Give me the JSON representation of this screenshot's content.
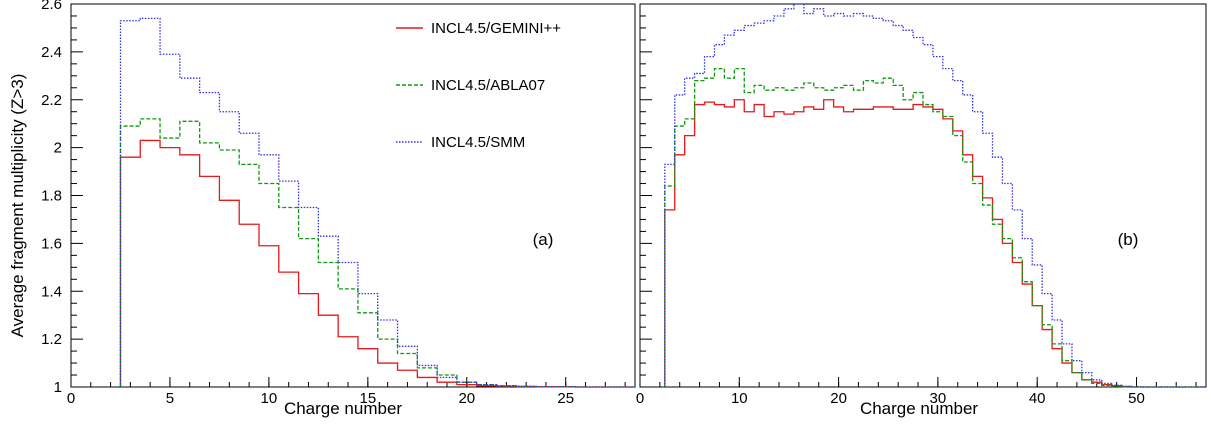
{
  "chart_data": [
    {
      "type": "line",
      "step": true,
      "panel_label": "(a)",
      "xlabel": "Charge number",
      "ylabel": "Average fragment multiplicity (Z>3)",
      "xlim": [
        0,
        28.5
      ],
      "ylim": [
        1,
        2.6
      ],
      "x_ticks": [
        0,
        5,
        10,
        15,
        20,
        25
      ],
      "y_ticks": [
        1,
        1.2,
        1.4,
        1.6,
        1.8,
        2,
        2.2,
        2.4,
        2.6
      ],
      "bin_width": 1,
      "x_start": 2.5,
      "legend_position": "top-center",
      "series": [
        {
          "name": "INCL4.5/GEMINI++",
          "color": "#e41a1c",
          "dash": "solid",
          "values": [
            1.96,
            2.03,
            2.0,
            1.97,
            1.88,
            1.78,
            1.68,
            1.59,
            1.48,
            1.39,
            1.3,
            1.21,
            1.16,
            1.1,
            1.07,
            1.04,
            1.02,
            1.01,
            1.005,
            1.003,
            1.002,
            1.001,
            1.001,
            1.0,
            1.0,
            1.0
          ]
        },
        {
          "name": "INCL4.5/ABLA07",
          "color": "#119911",
          "dash": "dashed",
          "values": [
            2.09,
            2.12,
            2.04,
            2.11,
            2.02,
            1.99,
            1.93,
            1.85,
            1.75,
            1.62,
            1.52,
            1.41,
            1.31,
            1.2,
            1.14,
            1.08,
            1.05,
            1.02,
            1.01,
            1.005,
            1.002,
            1.001,
            1.001,
            1.0,
            1.0,
            1.0
          ]
        },
        {
          "name": "INCL4.5/SMM",
          "color": "#3333dd",
          "dash": "dotted",
          "values": [
            2.53,
            2.54,
            2.39,
            2.29,
            2.23,
            2.15,
            2.06,
            1.97,
            1.86,
            1.75,
            1.63,
            1.52,
            1.39,
            1.28,
            1.17,
            1.09,
            1.04,
            1.02,
            1.01,
            1.005,
            1.003,
            1.001,
            1.001,
            1.0,
            1.0,
            1.0
          ]
        }
      ]
    },
    {
      "type": "line",
      "step": true,
      "panel_label": "(b)",
      "xlabel": "Charge number",
      "ylabel": "",
      "xlim": [
        0,
        57
      ],
      "ylim": [
        1,
        2.6
      ],
      "x_ticks": [
        0,
        10,
        20,
        30,
        40,
        50
      ],
      "bin_width": 1,
      "x_start": 2.5,
      "series": [
        {
          "name": "INCL4.5/GEMINI++",
          "color": "#e41a1c",
          "dash": "solid",
          "values": [
            1.74,
            1.97,
            2.05,
            2.18,
            2.19,
            2.18,
            2.17,
            2.2,
            2.15,
            2.18,
            2.13,
            2.15,
            2.14,
            2.15,
            2.17,
            2.16,
            2.2,
            2.17,
            2.15,
            2.16,
            2.16,
            2.17,
            2.17,
            2.16,
            2.16,
            2.18,
            2.17,
            2.16,
            2.12,
            2.07,
            1.97,
            1.88,
            1.79,
            1.7,
            1.6,
            1.52,
            1.43,
            1.34,
            1.24,
            1.16,
            1.1,
            1.06,
            1.03,
            1.02,
            1.01,
            1.005,
            1.002,
            1.0,
            1.0,
            1.0,
            1.0,
            1.0,
            1.0,
            1.0
          ]
        },
        {
          "name": "INCL4.5/ABLA07",
          "color": "#119911",
          "dash": "dashed",
          "values": [
            1.84,
            2.09,
            2.12,
            2.28,
            2.29,
            2.33,
            2.29,
            2.33,
            2.23,
            2.26,
            2.24,
            2.25,
            2.24,
            2.25,
            2.27,
            2.25,
            2.24,
            2.25,
            2.26,
            2.24,
            2.28,
            2.27,
            2.29,
            2.26,
            2.2,
            2.23,
            2.18,
            2.15,
            2.13,
            2.05,
            1.94,
            1.85,
            1.76,
            1.68,
            1.62,
            1.54,
            1.44,
            1.34,
            1.26,
            1.18,
            1.11,
            1.06,
            1.03,
            1.015,
            1.007,
            1.003,
            1.001,
            1.0,
            1.0,
            1.0,
            1.0,
            1.0,
            1.0,
            1.0
          ]
        },
        {
          "name": "INCL4.5/SMM",
          "color": "#3333dd",
          "dash": "dotted",
          "values": [
            1.93,
            2.22,
            2.29,
            2.31,
            2.38,
            2.43,
            2.47,
            2.49,
            2.51,
            2.52,
            2.53,
            2.55,
            2.58,
            2.61,
            2.56,
            2.58,
            2.55,
            2.56,
            2.55,
            2.56,
            2.55,
            2.54,
            2.53,
            2.51,
            2.49,
            2.46,
            2.43,
            2.38,
            2.33,
            2.28,
            2.22,
            2.15,
            2.06,
            1.96,
            1.85,
            1.74,
            1.62,
            1.51,
            1.39,
            1.28,
            1.18,
            1.11,
            1.06,
            1.03,
            1.015,
            1.007,
            1.003,
            1.001,
            1.0,
            1.0,
            1.0,
            1.0,
            1.0,
            1.0
          ]
        }
      ]
    }
  ]
}
